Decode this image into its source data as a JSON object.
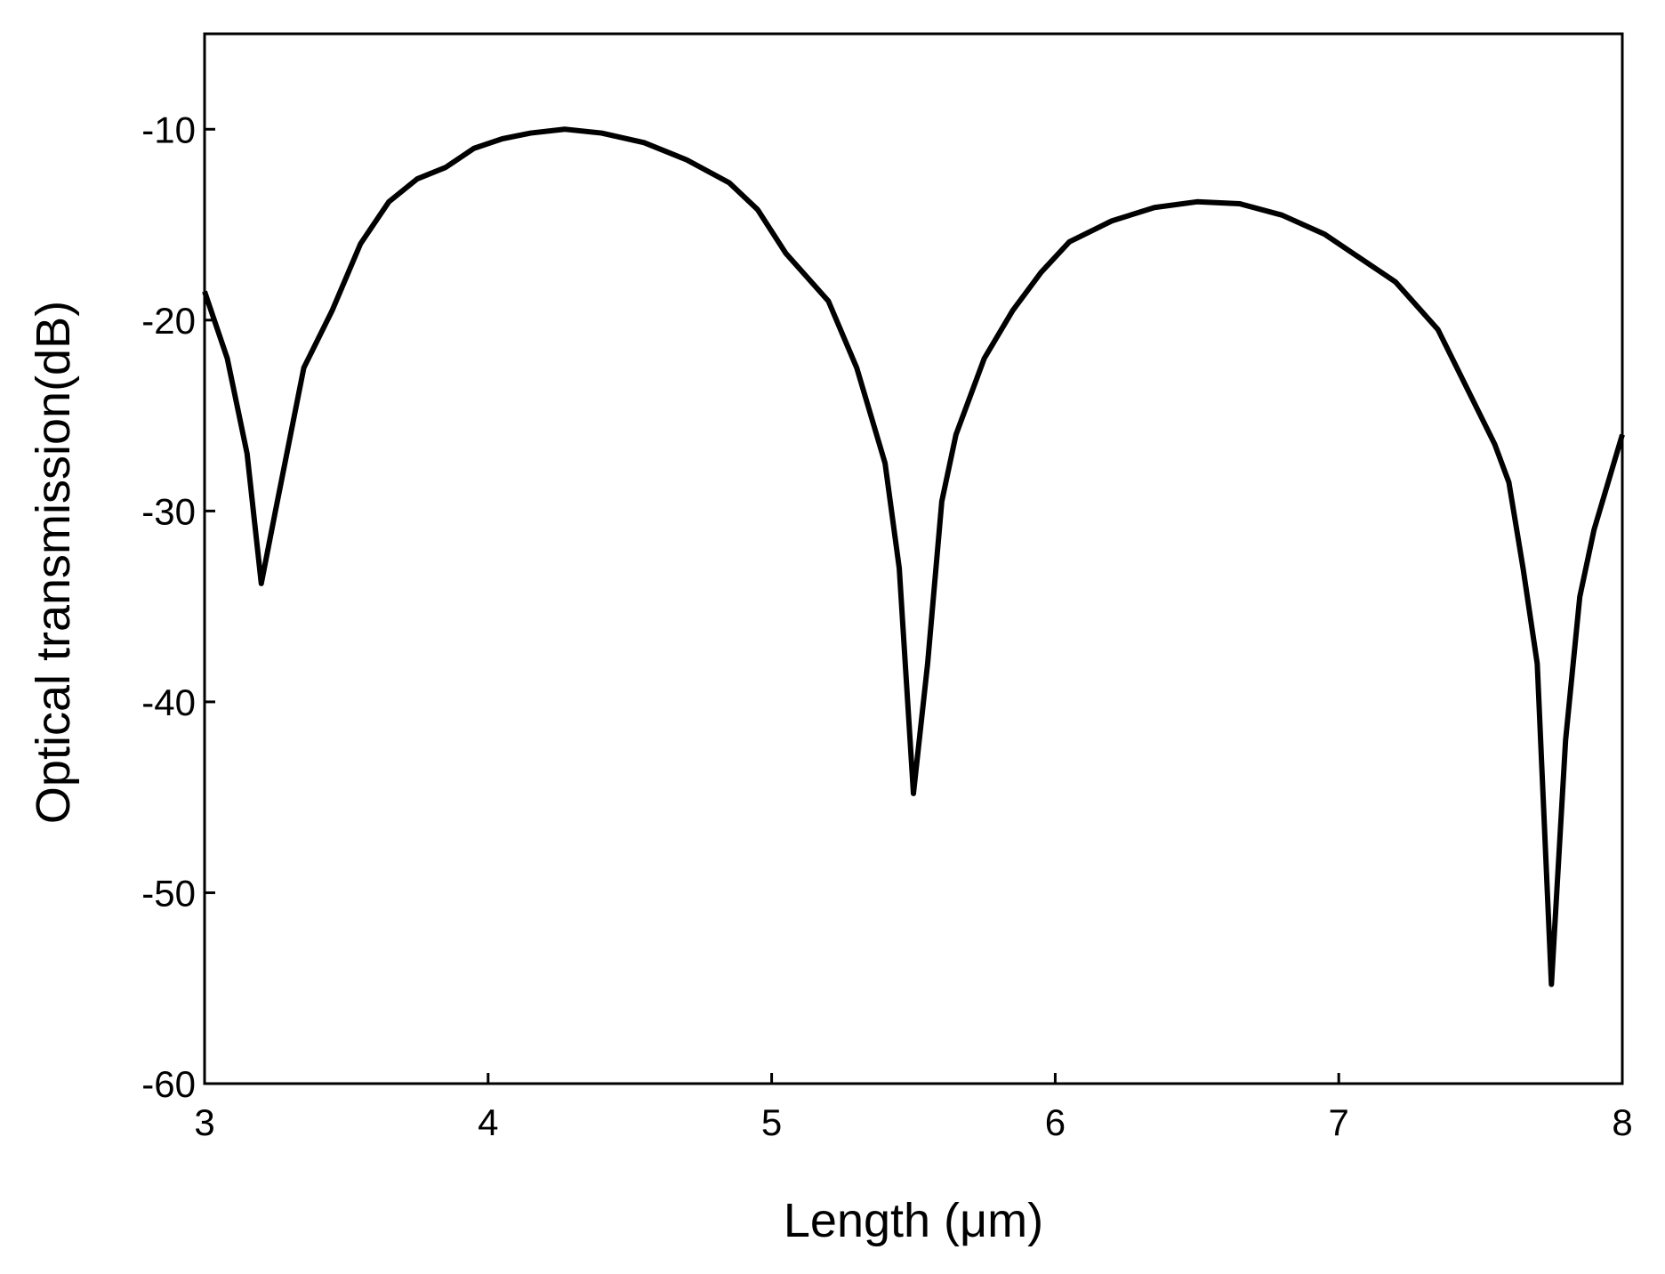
{
  "chart_data": {
    "type": "line",
    "x_label": "Length (μm)",
    "y_label": "Optical transmission(dB)",
    "xlim": [
      3,
      8
    ],
    "xticks": [
      3,
      4,
      5,
      6,
      7,
      8
    ],
    "ylim": [
      -60,
      -5
    ],
    "yticks": [
      -60,
      -50,
      -40,
      -30,
      -20,
      -10
    ],
    "x": [
      3.0,
      3.08,
      3.15,
      3.2,
      3.25,
      3.35,
      3.45,
      3.55,
      3.65,
      3.75,
      3.85,
      3.95,
      4.05,
      4.15,
      4.27,
      4.4,
      4.55,
      4.7,
      4.85,
      4.95,
      5.05,
      5.2,
      5.3,
      5.4,
      5.45,
      5.5,
      5.55,
      5.6,
      5.65,
      5.75,
      5.85,
      5.95,
      6.05,
      6.2,
      6.35,
      6.5,
      6.65,
      6.8,
      6.95,
      7.05,
      7.2,
      7.35,
      7.45,
      7.55,
      7.6,
      7.65,
      7.7,
      7.75,
      7.8,
      7.85,
      7.9,
      8.0
    ],
    "series": [
      {
        "color": "#000000",
        "values": [
          -18.5,
          -22,
          -27,
          -33.8,
          -30,
          -22.5,
          -19.5,
          -16,
          -13.8,
          -12.6,
          -12,
          -11,
          -10.5,
          -10.2,
          -10,
          -10.2,
          -10.7,
          -11.6,
          -12.8,
          -14.2,
          -16.5,
          -19,
          -22.5,
          -27.5,
          -33,
          -44.8,
          -38,
          -29.5,
          -26,
          -22,
          -19.5,
          -17.5,
          -15.9,
          -14.8,
          -14.1,
          -13.8,
          -13.9,
          -14.5,
          -15.5,
          -16.5,
          -18,
          -20.5,
          -23.5,
          -26.5,
          -28.5,
          -33,
          -38,
          -54.8,
          -42,
          -34.5,
          -31,
          -26
        ]
      }
    ]
  }
}
